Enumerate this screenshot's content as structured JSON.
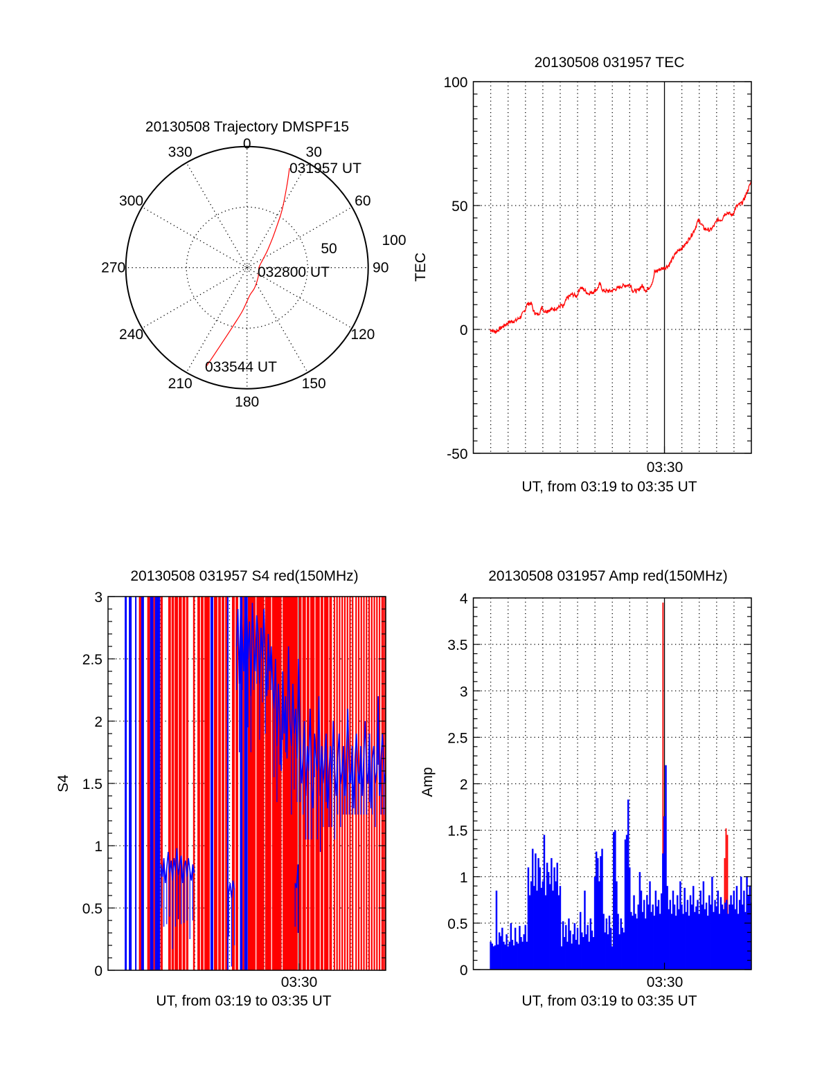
{
  "chart_data": [
    {
      "type": "polar",
      "title": "20130508 Trajectory DMSPF15",
      "azimuth_labels": [
        "0",
        "30",
        "60",
        "90",
        "120",
        "150",
        "180",
        "210",
        "240",
        "270",
        "300",
        "330"
      ],
      "azimuth_ticks_deg": [
        0,
        30,
        60,
        90,
        120,
        150,
        180,
        210,
        240,
        270,
        300,
        330
      ],
      "radial_labels": [
        "50",
        "100"
      ],
      "radial_ticks": [
        50,
        100
      ],
      "rlim": [
        0,
        100
      ],
      "grid": true,
      "trajectory_color": "#ff0000",
      "trajectory": {
        "azimuth_deg": [
          23.1,
          26.0,
          31.2,
          35.0,
          40.5,
          50.0,
          65.0,
          90.0,
          130.0,
          160.0,
          174.0,
          186.0,
          193.0,
          199.0,
          202.5
        ],
        "radius": [
          89.3,
          75.0,
          55.9,
          44.0,
          32.8,
          22.0,
          14.0,
          9.9,
          12.0,
          18.0,
          22.8,
          36.0,
          48.7,
          68.4,
          89.3
        ]
      },
      "annotations": [
        {
          "text": "031957 UT",
          "at": "start"
        },
        {
          "text": "032800 UT",
          "at": "middle"
        },
        {
          "text": "033544 UT",
          "at": "end"
        }
      ]
    },
    {
      "type": "line",
      "title": "20130508 031957 TEC",
      "xlabel": "UT, from 03:19 to 03:35 UT",
      "ylabel": "TEC",
      "xlim_minutes_after_0319": [
        0,
        16
      ],
      "x_tick_label": "03:30",
      "x_tick_minute": 11,
      "ylim": [
        -50,
        100
      ],
      "y_ticks": [
        -50,
        0,
        50,
        100
      ],
      "y_tick_labels": [
        "-50",
        "0",
        "50",
        "100"
      ],
      "grid": true,
      "series": [
        {
          "name": "TEC",
          "color": "#ff0000",
          "x_minutes": [
            0.95,
            1.27,
            1.67,
            2.07,
            2.47,
            2.75,
            2.99,
            3.07,
            3.27,
            3.35,
            3.47,
            3.67,
            3.87,
            3.95,
            4.07,
            4.47,
            4.87,
            5.07,
            5.15,
            5.39,
            5.67,
            5.95,
            6.15,
            6.35,
            6.59,
            6.87,
            7.15,
            7.27,
            7.47,
            7.87,
            8.27,
            8.59,
            9.07,
            9.15,
            9.47,
            9.71,
            9.95,
            10.19,
            10.35,
            10.43,
            10.75,
            11.07,
            11.27,
            11.55,
            11.75,
            12.15,
            12.55,
            12.75,
            12.91,
            13.03,
            13.27,
            13.63,
            13.83,
            14.03,
            14.31,
            14.43,
            14.63,
            14.91,
            15.11,
            15.51,
            15.71,
            16.0
          ],
          "y": [
            0,
            -1,
            1,
            3,
            3.6,
            5.3,
            8,
            10,
            10.6,
            10.3,
            7.2,
            5.9,
            7.2,
            9.5,
            7.3,
            8,
            8.7,
            9.8,
            8.7,
            12.6,
            14.2,
            13.4,
            17,
            16.2,
            14.5,
            15,
            16.5,
            18.4,
            15.6,
            15.4,
            16.5,
            17.6,
            18,
            15.6,
            15.6,
            17.6,
            15.6,
            17.6,
            19.8,
            23.2,
            24.3,
            25.1,
            26,
            29.6,
            31.6,
            33.8,
            38,
            40.5,
            43.6,
            43.6,
            40.8,
            40,
            41.6,
            44.1,
            44.4,
            46.4,
            47.2,
            46,
            49.4,
            51.4,
            54.7,
            59.8
          ]
        }
      ]
    },
    {
      "type": "bar",
      "title": "20130508 031957 S4 red(150MHz)",
      "xlabel": "UT, from 03:19 to 03:35 UT",
      "ylabel": "S4",
      "xlim_minutes_after_0319": [
        0,
        16
      ],
      "x_tick_label": "03:30",
      "x_tick_minute": 11,
      "ylim": [
        0,
        3
      ],
      "y_ticks": [
        0,
        0.5,
        1,
        1.5,
        2,
        2.5,
        3
      ],
      "y_tick_labels": [
        "0",
        "0.5",
        "1",
        "1.5",
        "2",
        "2.5",
        "3"
      ],
      "grid": true,
      "colors": {
        "red": "#ff0000",
        "blue": "#0000ff"
      },
      "saturated_columns": [
        [
          0.96,
          1.08,
          "blue"
        ],
        [
          1.2,
          1.36,
          "blue"
        ],
        [
          1.56,
          1.64,
          "blue"
        ],
        [
          1.78,
          1.91,
          "red"
        ],
        [
          1.91,
          2.07,
          "blue"
        ],
        [
          2.26,
          2.42,
          "red"
        ],
        [
          2.42,
          2.62,
          "blue"
        ],
        [
          2.62,
          2.7,
          "red"
        ],
        [
          2.7,
          3.0,
          "blue"
        ],
        [
          3.02,
          3.15,
          "red"
        ],
        [
          3.47,
          3.62,
          "red"
        ],
        [
          3.66,
          3.8,
          "red"
        ],
        [
          3.84,
          4.03,
          "red"
        ],
        [
          4.07,
          4.25,
          "red"
        ],
        [
          4.3,
          4.45,
          "red"
        ],
        [
          4.5,
          4.63,
          "red"
        ],
        [
          4.9,
          5.0,
          "red"
        ],
        [
          5.15,
          5.3,
          "red"
        ],
        [
          5.35,
          5.5,
          "red"
        ],
        [
          5.55,
          5.86,
          "red"
        ],
        [
          5.9,
          6.06,
          "blue"
        ],
        [
          6.1,
          6.3,
          "red"
        ],
        [
          6.35,
          6.5,
          "red"
        ],
        [
          6.55,
          6.7,
          "red"
        ],
        [
          6.75,
          6.86,
          "red"
        ],
        [
          6.86,
          6.94,
          "blue"
        ],
        [
          7.14,
          7.3,
          "red"
        ],
        [
          7.35,
          7.5,
          "red"
        ],
        [
          7.6,
          7.75,
          "blue"
        ],
        [
          7.75,
          7.85,
          "red"
        ],
        [
          7.85,
          8.05,
          "blue"
        ],
        [
          8.06,
          8.5,
          "red"
        ],
        [
          8.55,
          9.0,
          "red"
        ],
        [
          9.05,
          9.4,
          "red"
        ],
        [
          9.45,
          10.0,
          "red"
        ],
        [
          10.06,
          10.93,
          "red"
        ],
        [
          11.0,
          11.15,
          "red"
        ],
        [
          11.2,
          11.4,
          "red"
        ],
        [
          11.45,
          11.6,
          "red"
        ],
        [
          11.65,
          11.9,
          "red"
        ],
        [
          11.95,
          12.2,
          "red"
        ],
        [
          12.25,
          12.4,
          "red"
        ],
        [
          12.45,
          12.7,
          "red"
        ],
        [
          12.75,
          12.9,
          "red"
        ]
      ],
      "saturated_thin_red_minutes": [
        13.0,
        13.15,
        13.3,
        13.45,
        13.6,
        13.75,
        13.9,
        14.05,
        14.25,
        14.4,
        14.55,
        14.7,
        14.85,
        15.0,
        15.15,
        15.3,
        15.45,
        15.6,
        15.75,
        15.85,
        15.95
      ],
      "blue_series": [
        {
          "start_minute": 3.05,
          "step_minute": 0.0833,
          "values": [
            0.85,
            0.75,
            0.9,
            0.7,
            0.82,
            0.95,
            0.78,
            0.88,
            0.72,
            0.9,
            0.8,
            0.98,
            0.76,
            0.85,
            0.92,
            0.7,
            0.83,
            0.88,
            0.75,
            0.9,
            0.8,
            0.72,
            0.85,
            0.78
          ]
        },
        {
          "start_minute": 6.95,
          "step_minute": 0.0833,
          "values": [
            0.62,
            0.7,
            0.58,
            0.72,
            0.65
          ]
        },
        {
          "start_minute": 10.78,
          "step_minute": 0.0833,
          "values": [
            0.7,
            0.66,
            0.85
          ]
        },
        {
          "start_minute": 7.4,
          "step_minute": 0.0833,
          "values": [
            2.6,
            2.9,
            2.3,
            3.0,
            2.7,
            2.4,
            2.9,
            3.0,
            2.5,
            2.8,
            2.2,
            2.95,
            2.6,
            2.4,
            2.85,
            2.7,
            2.3,
            2.75,
            2.5,
            2.9,
            2.45,
            2.2,
            2.7,
            2.4,
            2.6,
            2.3,
            2.1,
            2.5,
            1.8,
            2.3,
            2.0,
            1.6,
            2.4,
            1.9,
            2.2,
            1.7,
            2.6,
            2.0,
            1.8,
            2.3,
            1.9,
            2.1,
            1.7,
            2.5,
            1.9,
            1.5,
            1.7,
            2.0,
            1.4,
            1.8,
            1.6,
            2.1,
            1.5,
            1.3,
            1.9,
            1.7,
            1.6,
            2.2,
            1.4,
            1.8,
            1.5,
            1.7,
            1.9,
            1.3,
            1.6,
            1.8,
            1.5,
            2.0,
            1.6,
            1.4,
            1.7,
            1.9,
            1.5,
            1.6,
            1.8,
            1.4,
            1.7,
            2.1,
            1.6,
            1.5,
            1.8,
            1.3,
            1.7,
            1.9,
            1.6,
            1.5,
            1.8,
            1.4,
            1.7,
            2.0,
            1.6,
            1.5,
            1.9,
            1.3,
            1.7,
            1.8,
            1.5,
            1.6,
            2.2,
            1.4,
            1.7,
            1.9,
            1.6,
            1.5
          ]
        }
      ]
    },
    {
      "type": "bar",
      "title": "20130508 031957 Amp red(150MHz)",
      "xlabel": "UT, from 03:19 to 03:35 UT",
      "ylabel": "Amp",
      "xlim_minutes_after_0319": [
        0,
        16
      ],
      "x_tick_label": "03:30",
      "x_tick_minute": 11,
      "ylim": [
        0,
        4
      ],
      "y_ticks": [
        0,
        0.5,
        1,
        1.5,
        2,
        2.5,
        3,
        3.5,
        4
      ],
      "y_tick_labels": [
        "0",
        "0.5",
        "1",
        "1.5",
        "2",
        "2.5",
        "3",
        "3.5",
        "4"
      ],
      "grid": true,
      "colors": {
        "red": "#ff0000",
        "blue": "#0000ff"
      },
      "blue": {
        "start_minute": 0.95,
        "step_minute": 0.0833,
        "values": [
          0.3,
          0.28,
          0.25,
          0.26,
          0.85,
          0.27,
          0.4,
          0.36,
          0.45,
          0.3,
          0.27,
          0.38,
          0.25,
          0.3,
          0.5,
          0.32,
          0.26,
          0.45,
          0.3,
          0.28,
          0.47,
          0.35,
          0.3,
          0.38,
          0.48,
          0.3,
          1.1,
          0.8,
          0.95,
          1.3,
          0.9,
          1.25,
          0.85,
          1.2,
          1.1,
          0.88,
          0.95,
          1.45,
          0.8,
          1.15,
          1.05,
          0.92,
          1.2,
          0.85,
          1.1,
          0.95,
          1.15,
          0.8,
          0.9,
          0.25,
          0.52,
          0.35,
          0.48,
          0.3,
          0.55,
          0.42,
          0.28,
          0.38,
          0.5,
          0.32,
          0.45,
          0.27,
          0.62,
          0.4,
          0.35,
          0.85,
          0.38,
          0.48,
          0.3,
          0.55,
          0.42,
          0.35,
          1.0,
          1.27,
          1.2,
          0.95,
          1.22,
          1.3,
          0.6,
          0.4,
          0.55,
          0.38,
          0.58,
          0.45,
          0.25,
          1.48,
          1.5,
          0.95,
          0.6,
          0.38,
          0.55,
          0.45,
          0.4,
          1.4,
          1.45,
          1.83,
          1.1,
          0.62,
          0.58,
          0.8,
          0.6,
          0.55,
          0.7,
          1.05,
          0.85,
          0.62,
          0.75,
          0.55,
          0.8,
          0.7,
          0.95,
          0.62,
          0.7,
          0.58,
          0.85,
          0.68,
          0.75,
          0.6,
          0.82,
          1.25,
          1.65,
          2.2,
          0.9,
          0.65,
          0.75,
          0.6,
          0.85,
          0.7,
          0.58,
          0.8,
          0.65,
          0.95,
          0.7,
          0.6,
          0.88,
          0.62,
          0.75,
          0.58,
          0.8,
          0.7,
          0.9,
          0.62,
          0.68,
          0.75,
          0.6,
          0.85,
          0.7,
          0.95,
          0.65,
          0.72,
          0.58,
          0.8,
          0.7,
          1.0,
          0.62,
          0.75,
          0.68,
          0.85,
          0.6,
          0.78,
          0.7,
          0.65,
          0.72,
          0.75,
          0.6,
          0.7,
          0.8,
          0.7,
          0.85,
          0.65,
          0.9,
          0.6,
          0.75,
          1.0,
          0.7,
          0.85,
          0.62,
          1.0,
          0.8,
          0.9,
          0.72
        ]
      },
      "red": {
        "minutes": [
          10.91,
          14.46,
          14.54,
          14.62
        ],
        "values": [
          3.95,
          1.2,
          1.52,
          1.45
        ]
      }
    }
  ]
}
